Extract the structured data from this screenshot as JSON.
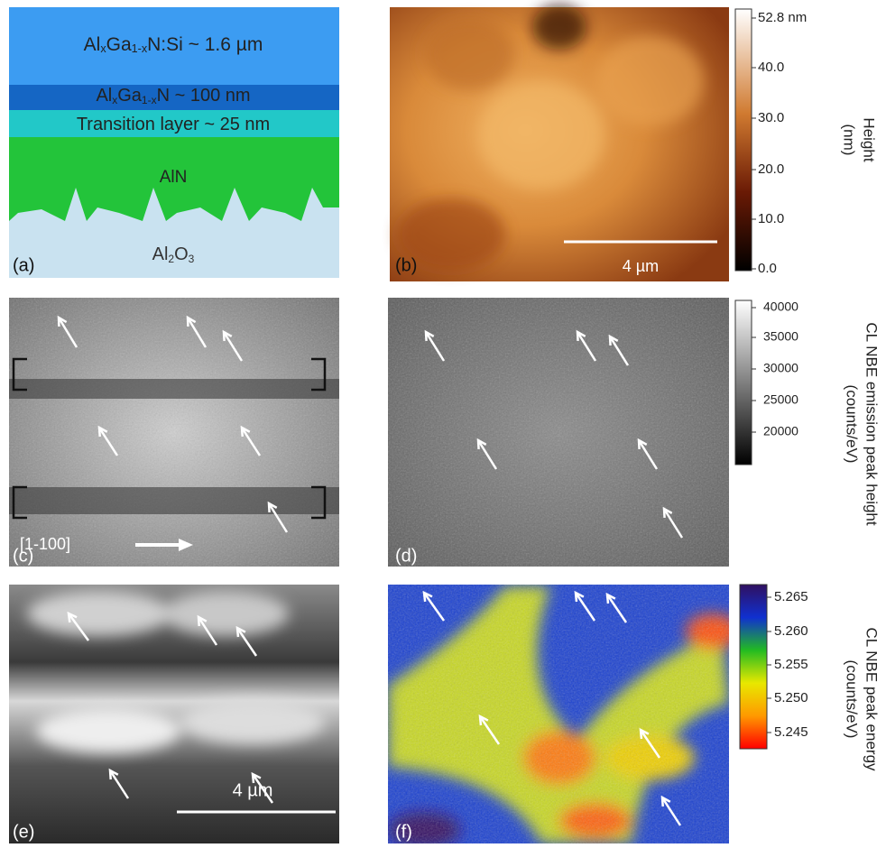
{
  "panel_labels": [
    "(a)",
    "(b)",
    "(c)",
    "(d)",
    "(e)",
    "(f)"
  ],
  "layers": [
    {
      "parts": [
        "Al",
        "x",
        "Ga",
        "1-x",
        "N:Si ~ 1.6 µm"
      ]
    },
    {
      "parts": [
        "Al",
        "x",
        "Ga",
        "1-x",
        "N ~ 100 nm"
      ]
    },
    {
      "parts": [
        "Transition layer ~ 25 nm"
      ]
    },
    {
      "parts": [
        "AlN"
      ]
    },
    {
      "parts": [
        "Al",
        "2",
        "O",
        "3"
      ]
    }
  ],
  "colorbars": [
    {
      "ticks": [
        "52.8 nm",
        "40.0",
        "30.0",
        "20.0",
        "10.0",
        "0.0"
      ],
      "title": [
        "Height",
        "(nm)"
      ]
    },
    {
      "ticks": [
        "40000",
        "35000",
        "30000",
        "25000",
        "20000"
      ],
      "title": [
        "CL NBE emission peak height",
        "(counts/eV)"
      ]
    },
    {
      "ticks": [
        "5.265",
        "5.260",
        "5.255",
        "5.250",
        "5.245"
      ],
      "title": [
        "CL NBE peak energy",
        "(counts/eV)"
      ]
    }
  ],
  "scale_bars": [
    "4 µm",
    "4 µm"
  ],
  "direction_label": "[1-100]"
}
